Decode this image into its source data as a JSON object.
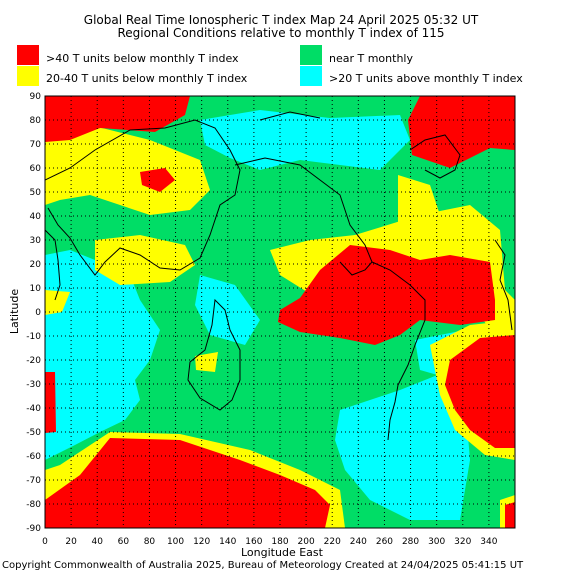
{
  "title": {
    "line1": "Global Real Time Ionospheric T index Map 24 April 2025 05:32 UT",
    "line2": "Regional Conditions relative to monthly T index of 115"
  },
  "legend": [
    {
      "label": ">40 T units below monthly T index",
      "color": "#ff0000"
    },
    {
      "label": "20-40 T units below monthly T index",
      "color": "#ffff00"
    },
    {
      "label": "near T monthly",
      "color": "#00dd66"
    },
    {
      "label": ">20 T units above monthly T index",
      "color": "#00ffff"
    }
  ],
  "axes": {
    "xlabel": "Longitude East",
    "ylabel": "Latitude",
    "x_ticks": [
      "0",
      "20",
      "40",
      "60",
      "80",
      "100",
      "120",
      "140",
      "160",
      "180",
      "200",
      "220",
      "240",
      "260",
      "280",
      "300",
      "320",
      "340"
    ],
    "y_ticks": [
      "90",
      "80",
      "70",
      "60",
      "50",
      "40",
      "30",
      "20",
      "10",
      "0",
      "-10",
      "-20",
      "-30",
      "-40",
      "-50",
      "-60",
      "-70",
      "-80",
      "-90"
    ]
  },
  "footer": {
    "copyright": "Copyright Commonwealth of Australia 2025, Bureau of Meteorology   Created at 24/04/2025 05:41:15 UT"
  }
}
